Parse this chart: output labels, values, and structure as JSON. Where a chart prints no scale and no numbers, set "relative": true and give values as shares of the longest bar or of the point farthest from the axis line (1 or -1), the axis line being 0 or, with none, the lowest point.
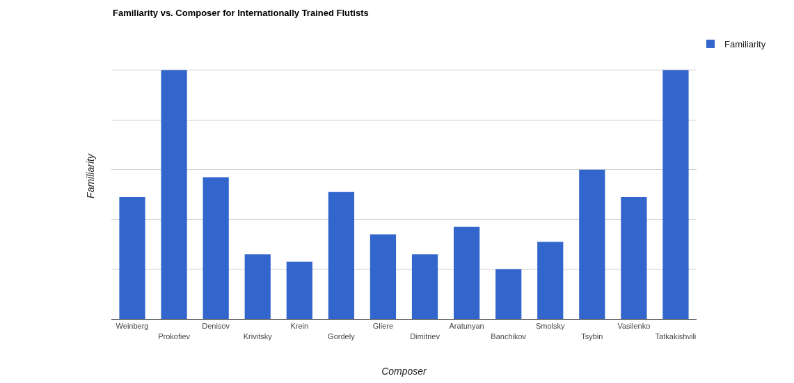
{
  "chart_data": {
    "type": "bar",
    "title": "Familiarity vs. Composer for Internationally Trained Flutists",
    "xlabel": "Composer",
    "ylabel": "Familiarity",
    "relative": true,
    "grid": "y",
    "legend": "top right",
    "categories": [
      "Weinberg",
      "Prokofiev",
      "Denisov",
      "Krivitsky",
      "Krein",
      "Gordely",
      "Gliere",
      "Dimitriev",
      "Aratunyan",
      "Banchikov",
      "Smolsky",
      "Tsybin",
      "Vasilenko",
      "Tatkakishvili"
    ],
    "series": [
      {
        "name": "Familiarity",
        "color": "#3366cc",
        "values": [
          0.49,
          1,
          0.57,
          0.26,
          0.23,
          0.51,
          0.34,
          0.26,
          0.37,
          0.2,
          0.31,
          0.6,
          0.49,
          1
        ]
      }
    ]
  }
}
